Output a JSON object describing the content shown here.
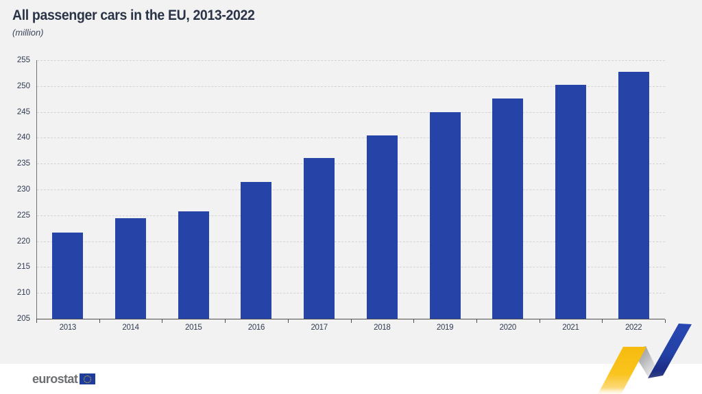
{
  "header": {
    "title": "All passenger cars in the EU, 2013-2022",
    "subtitle": "(million)"
  },
  "chart_data": {
    "type": "bar",
    "title": "All passenger cars in the EU, 2013-2022",
    "subtitle_unit": "(million)",
    "categories": [
      "2013",
      "2014",
      "2015",
      "2016",
      "2017",
      "2018",
      "2019",
      "2020",
      "2021",
      "2022"
    ],
    "values": [
      221.7,
      224.4,
      225.8,
      231.4,
      236.1,
      240.5,
      244.9,
      247.6,
      250.3,
      252.7
    ],
    "xlabel": "",
    "ylabel": "(million)",
    "ylim": [
      205,
      255
    ],
    "yticks": [
      205,
      210,
      215,
      220,
      225,
      230,
      235,
      240,
      245,
      250,
      255
    ],
    "grid": "horizontal-dashed",
    "legend": "none",
    "bar_color": "#2644a7",
    "background_color": "#f2f2f3",
    "text_color": "#2e3a50"
  },
  "footer": {
    "logo_text": "eurostat",
    "logo_flag": "eu-flag-icon"
  },
  "colors": {
    "bar": "#2644a7",
    "title_text": "#2b3447",
    "axis": "#4d4d4d",
    "gridline": "#d3d3d5",
    "ribbon_yellow": "#f8c21c",
    "ribbon_blue": "#2443a6",
    "ribbon_silver": "#9a9a9a"
  }
}
